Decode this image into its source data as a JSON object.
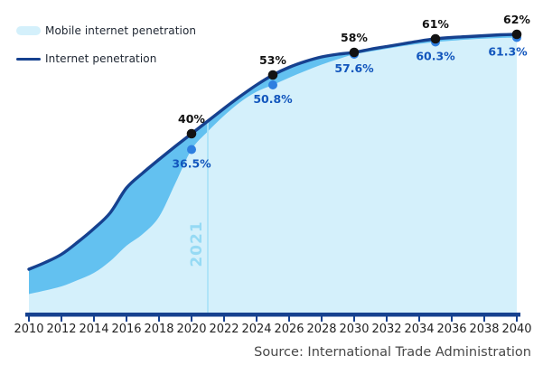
{
  "legend": {
    "items": [
      {
        "label": "Mobile internet penetration",
        "swatch": "area",
        "color": "#d4f0fb"
      },
      {
        "label": "Internet penetration",
        "swatch": "line",
        "color": "#16418f"
      }
    ]
  },
  "annotation": {
    "vertical_year_label": "2021"
  },
  "source_text": "Source: International Trade Administration",
  "colors": {
    "internet_line": "#16418f",
    "internet_area_fill": "#63c1f0",
    "mobile_area_fill": "#d4f0fb",
    "internet_dot": "#131313",
    "internet_label": "#111111",
    "mobile_dot": "#2e7fe0",
    "mobile_label": "#1256bd",
    "axis": "#16418f",
    "tick_label": "#232323",
    "annotation_line": "#abe3f8",
    "annotation_text": "#96daf4"
  },
  "chart_data": {
    "type": "area",
    "title": "",
    "xlabel": "",
    "ylabel": "",
    "x": [
      2010,
      2011,
      2012,
      2013,
      2014,
      2015,
      2016,
      2017,
      2018,
      2019,
      2020,
      2021,
      2022,
      2023,
      2024,
      2025,
      2026,
      2027,
      2028,
      2029,
      2030,
      2031,
      2032,
      2033,
      2034,
      2035,
      2036,
      2037,
      2038,
      2039,
      2040
    ],
    "x_ticks": [
      2010,
      2012,
      2014,
      2016,
      2018,
      2020,
      2022,
      2024,
      2026,
      2028,
      2030,
      2032,
      2034,
      2036,
      2038,
      2040
    ],
    "xlim": [
      2010,
      2040
    ],
    "ylim": [
      0,
      65
    ],
    "grid": false,
    "legend_position": "top-left",
    "annotation_year": 2021,
    "series": [
      {
        "name": "Internet penetration",
        "values": [
          10,
          11.5,
          13.3,
          16,
          19,
          22.5,
          28,
          31.3,
          34.3,
          37.2,
          40,
          42.8,
          45.6,
          48.3,
          50.8,
          53,
          54.7,
          56,
          57,
          57.6,
          58,
          58.7,
          59.3,
          59.9,
          60.5,
          61,
          61.3,
          61.5,
          61.7,
          61.9,
          62
        ],
        "labeled_points": [
          {
            "x": 2020,
            "value": 40,
            "label": "40%"
          },
          {
            "x": 2025,
            "value": 53,
            "label": "53%"
          },
          {
            "x": 2030,
            "value": 58,
            "label": "58%"
          },
          {
            "x": 2035,
            "value": 61,
            "label": "61%"
          },
          {
            "x": 2040,
            "value": 62,
            "label": "62%"
          }
        ]
      },
      {
        "name": "Mobile internet penetration",
        "values": [
          4.5,
          5.3,
          6.2,
          7.6,
          9.2,
          11.8,
          15.2,
          17.8,
          21.6,
          29,
          36.5,
          40.5,
          44,
          47,
          49.3,
          50.8,
          52.4,
          53.9,
          55.3,
          56.5,
          57.6,
          58.2,
          58.8,
          59.4,
          59.9,
          60.3,
          60.6,
          60.85,
          61.05,
          61.2,
          61.3
        ],
        "labeled_points": [
          {
            "x": 2020,
            "value": 36.5,
            "label": "36.5%"
          },
          {
            "x": 2025,
            "value": 50.8,
            "label": "50.8%"
          },
          {
            "x": 2030,
            "value": 57.6,
            "label": "57.6%"
          },
          {
            "x": 2035,
            "value": 60.3,
            "label": "60.3%"
          },
          {
            "x": 2040,
            "value": 61.3,
            "label": "61.3%"
          }
        ]
      }
    ]
  }
}
